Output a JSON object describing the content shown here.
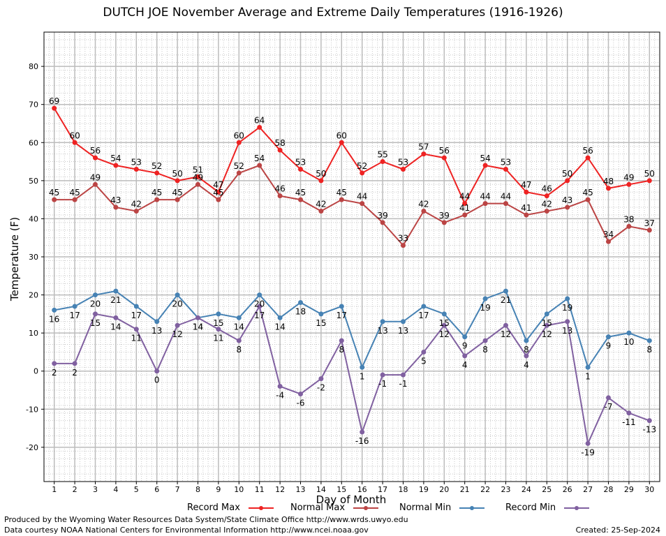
{
  "chart_data": {
    "type": "line",
    "title": "DUTCH JOE November Average and Extreme Daily Temperatures (1916-1926)",
    "xlabel": "Day of Month",
    "ylabel": "Temperature (F)",
    "x": [
      1,
      2,
      3,
      4,
      5,
      6,
      7,
      8,
      9,
      10,
      11,
      12,
      13,
      14,
      15,
      16,
      17,
      18,
      19,
      20,
      21,
      22,
      23,
      24,
      25,
      26,
      27,
      28,
      29,
      30
    ],
    "xlim": [
      0.5,
      30.5
    ],
    "ylim": [
      -29,
      89
    ],
    "yticks": [
      -20,
      -10,
      0,
      10,
      20,
      30,
      40,
      50,
      60,
      70,
      80
    ],
    "grid": true,
    "legend_position": "bottom",
    "series": [
      {
        "name": "Record Max",
        "color": "#ee2222",
        "label_pos": "above",
        "values": [
          69,
          60,
          56,
          54,
          53,
          52,
          50,
          51,
          47,
          60,
          64,
          58,
          53,
          50,
          60,
          52,
          55,
          53,
          57,
          56,
          44,
          54,
          53,
          47,
          46,
          50,
          56,
          48,
          49,
          50
        ]
      },
      {
        "name": "Normal Max",
        "color": "#bb4444",
        "label_pos": "above",
        "values": [
          45,
          45,
          49,
          43,
          42,
          45,
          45,
          49,
          45,
          52,
          54,
          46,
          45,
          42,
          45,
          44,
          39,
          33,
          42,
          39,
          41,
          44,
          44,
          41,
          42,
          43,
          45,
          34,
          38,
          37
        ]
      },
      {
        "name": "Normal Min",
        "color": "#4682b4",
        "label_pos": "below",
        "values": [
          16,
          17,
          20,
          21,
          17,
          13,
          20,
          14,
          15,
          14,
          20,
          14,
          18,
          15,
          17,
          1,
          13,
          13,
          17,
          15,
          9,
          19,
          21,
          8,
          15,
          19,
          1,
          9,
          10,
          8
        ]
      },
      {
        "name": "Record Min",
        "color": "#8060a0",
        "label_pos": "below",
        "values": [
          2,
          2,
          15,
          14,
          11,
          0,
          12,
          14,
          11,
          8,
          17,
          -4,
          -6,
          -2,
          8,
          -16,
          -1,
          -1,
          5,
          12,
          4,
          8,
          12,
          4,
          12,
          13,
          -19,
          -7,
          -11,
          -13
        ]
      }
    ]
  },
  "footer": {
    "credit": "Produced by the Wyoming Water Resources Data System/State Climate Office http://www.wrds.uwyo.edu",
    "source": "Data courtesy NOAA National Centers for Environmental Information http://www.ncei.noaa.gov",
    "created": "Created:  25-Sep-2024"
  }
}
